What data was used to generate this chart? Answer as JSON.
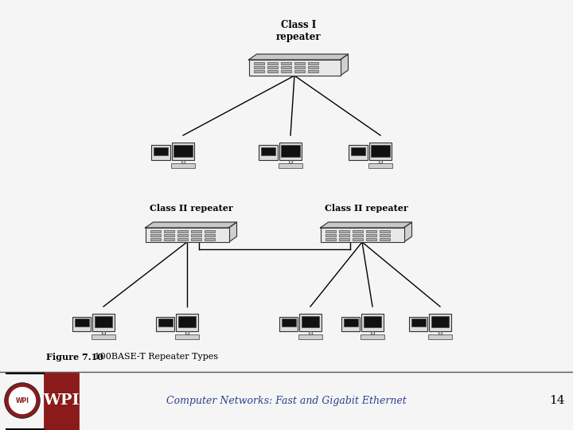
{
  "bg_color": "#f5f5f5",
  "footer_bg": "#ffffff",
  "title_text": "Computer Networks: Fast and Gigabit Ethernet",
  "slide_number": "14",
  "figure_caption_bold": "Figure 7.10",
  "figure_caption_rest": "   100BASE-T Repeater Types",
  "class1_label": "Class I\nrepeater",
  "class2a_label": "Class II repeater",
  "class2b_label": "Class II repeater",
  "title_color": "#2e3f8f",
  "text_color": "#000000",
  "line_color": "#000000",
  "repeater_face": "#e8e8e8",
  "repeater_top": "#c8c8c8",
  "repeater_right": "#d0d0d0",
  "repeater_outline": "#333333",
  "wpi_red": "#8b1a1a",
  "wpi_text_color": "#8b1a1a"
}
